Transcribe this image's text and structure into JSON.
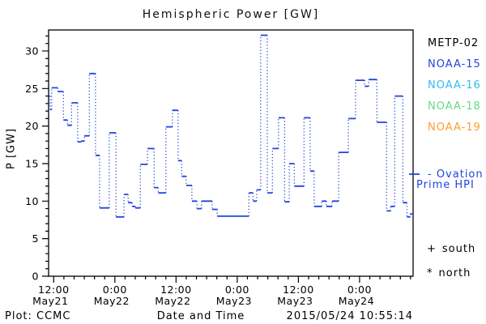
{
  "chart_data": {
    "type": "line",
    "subtype": "step-histogram, solid horizontal levels joined by dotted vertical connectors",
    "title": "Hemispheric Power [GW]",
    "xlabel": "Date and Time",
    "ylabel": "P [GW]",
    "series_name": "Ovation Prime HPI",
    "line_color": "#2244dd",
    "axis_color": "#000000",
    "xlim_hours_since_may21_0000": [
      11,
      82.5
    ],
    "ylim": [
      0,
      32.8
    ],
    "y_major_ticks": [
      0,
      5,
      10,
      15,
      20,
      25,
      30
    ],
    "y_minor_step": 1,
    "x_minor_step_hours": 2,
    "x_ticks": [
      {
        "t": 12,
        "time": "12:00",
        "date": "May21"
      },
      {
        "t": 24,
        "time": "0:00",
        "date": "May22"
      },
      {
        "t": 36,
        "time": "12:00",
        "date": "May22"
      },
      {
        "t": 48,
        "time": "0:00",
        "date": "May23"
      },
      {
        "t": 60,
        "time": "12:00",
        "date": "May23"
      },
      {
        "t": 72,
        "time": "0:00",
        "date": "May24"
      }
    ],
    "steps_time_value": [
      [
        11.0,
        24.0
      ],
      [
        11.3,
        22.2
      ],
      [
        11.6,
        25.1
      ],
      [
        12.8,
        24.6
      ],
      [
        13.9,
        20.8
      ],
      [
        14.7,
        20.1
      ],
      [
        15.5,
        23.1
      ],
      [
        16.7,
        17.9
      ],
      [
        17.4,
        18.0
      ],
      [
        18.0,
        18.7
      ],
      [
        19.0,
        27.0
      ],
      [
        20.2,
        16.1
      ],
      [
        21.0,
        9.1
      ],
      [
        22.9,
        19.1
      ],
      [
        24.2,
        7.9
      ],
      [
        25.8,
        10.9
      ],
      [
        26.6,
        9.8
      ],
      [
        27.4,
        9.3
      ],
      [
        28.0,
        9.1
      ],
      [
        29.0,
        14.9
      ],
      [
        30.4,
        17.0
      ],
      [
        31.7,
        11.8
      ],
      [
        32.5,
        11.1
      ],
      [
        34.0,
        19.9
      ],
      [
        35.3,
        22.1
      ],
      [
        36.4,
        15.4
      ],
      [
        37.1,
        13.3
      ],
      [
        38.0,
        12.1
      ],
      [
        39.1,
        10.0
      ],
      [
        40.1,
        9.0
      ],
      [
        41.0,
        10.0
      ],
      [
        43.1,
        8.9
      ],
      [
        44.1,
        8.0
      ],
      [
        50.3,
        11.1
      ],
      [
        51.1,
        10.0
      ],
      [
        51.8,
        11.5
      ],
      [
        52.6,
        32.1
      ],
      [
        53.9,
        11.1
      ],
      [
        54.9,
        17.0
      ],
      [
        56.1,
        21.1
      ],
      [
        57.3,
        9.9
      ],
      [
        58.2,
        15.0
      ],
      [
        59.2,
        12.0
      ],
      [
        61.1,
        21.1
      ],
      [
        62.3,
        14.0
      ],
      [
        63.1,
        9.3
      ],
      [
        64.6,
        10.0
      ],
      [
        65.5,
        9.3
      ],
      [
        66.6,
        10.0
      ],
      [
        67.9,
        16.5
      ],
      [
        69.8,
        21.0
      ],
      [
        71.2,
        26.1
      ],
      [
        73.0,
        25.3
      ],
      [
        73.8,
        26.2
      ],
      [
        75.4,
        20.5
      ],
      [
        77.3,
        8.7
      ],
      [
        78.1,
        9.3
      ],
      [
        78.9,
        24.0
      ],
      [
        80.5,
        9.8
      ],
      [
        81.3,
        7.9
      ],
      [
        81.9,
        8.3
      ]
    ]
  },
  "legend": {
    "satellites": [
      {
        "label": "METP-02",
        "color": "#000000"
      },
      {
        "label": "NOAA-15",
        "color": "#2244dd"
      },
      {
        "label": "NOAA-16",
        "color": "#33bbf0"
      },
      {
        "label": "NOAA-18",
        "color": "#66d98a"
      },
      {
        "label": "NOAA-19",
        "color": "#ff9d2e"
      }
    ],
    "ovation_line1": "- Ovation",
    "ovation_line2": "Prime HPI",
    "ovation_color": "#2244dd",
    "south_symbol": "+",
    "south_label": "south",
    "north_symbol": "*",
    "north_label": "north"
  },
  "footer": {
    "credit": "Plot: CCMC",
    "timestamp": "2015/05/24 10:55:14"
  }
}
